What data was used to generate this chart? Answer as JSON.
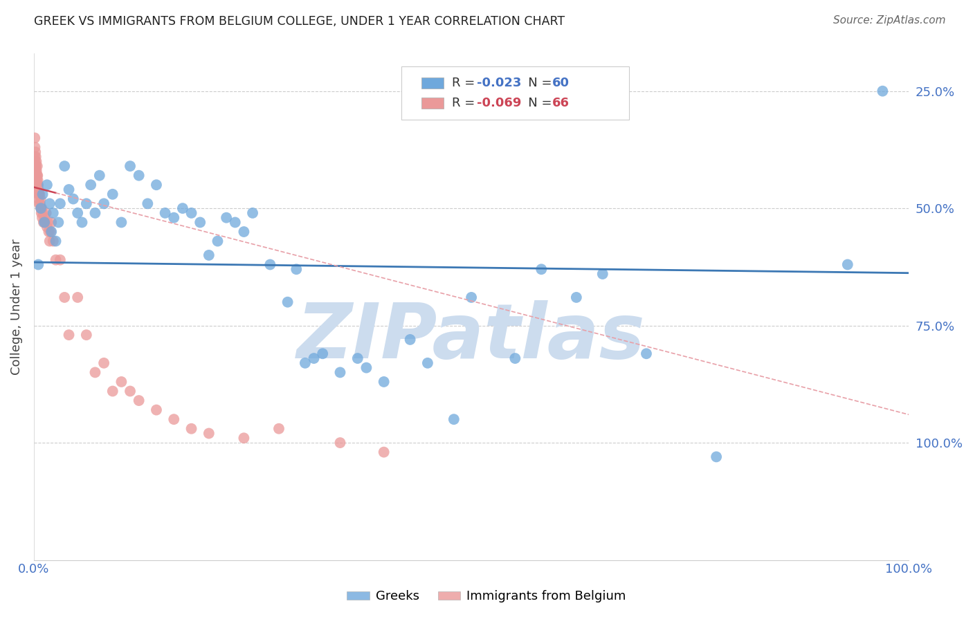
{
  "title": "GREEK VS IMMIGRANTS FROM BELGIUM COLLEGE, UNDER 1 YEAR CORRELATION CHART",
  "source": "Source: ZipAtlas.com",
  "ylabel": "College, Under 1 year",
  "ytick_labels": [
    "100.0%",
    "75.0%",
    "50.0%",
    "25.0%"
  ],
  "legend_blue_r": "-0.023",
  "legend_blue_n": "60",
  "legend_pink_r": "-0.069",
  "legend_pink_n": "66",
  "legend_label_blue": "Greeks",
  "legend_label_pink": "Immigrants from Belgium",
  "watermark": "ZIPatlas",
  "blue_scatter_x": [
    0.5,
    0.8,
    1.0,
    1.2,
    1.5,
    1.8,
    2.0,
    2.2,
    2.5,
    2.8,
    3.0,
    3.5,
    4.0,
    4.5,
    5.0,
    5.5,
    6.0,
    6.5,
    7.0,
    7.5,
    8.0,
    9.0,
    10.0,
    11.0,
    12.0,
    13.0,
    14.0,
    15.0,
    16.0,
    17.0,
    18.0,
    19.0,
    20.0,
    21.0,
    22.0,
    23.0,
    24.0,
    25.0,
    27.0,
    29.0,
    30.0,
    31.0,
    32.0,
    33.0,
    35.0,
    37.0,
    38.0,
    40.0,
    43.0,
    45.0,
    48.0,
    50.0,
    55.0,
    58.0,
    62.0,
    65.0,
    70.0,
    78.0,
    93.0,
    97.0
  ],
  "blue_scatter_y": [
    63.0,
    75.0,
    78.0,
    72.0,
    80.0,
    76.0,
    70.0,
    74.0,
    68.0,
    72.0,
    76.0,
    84.0,
    79.0,
    77.0,
    74.0,
    72.0,
    76.0,
    80.0,
    74.0,
    82.0,
    76.0,
    78.0,
    72.0,
    84.0,
    82.0,
    76.0,
    80.0,
    74.0,
    73.0,
    75.0,
    74.0,
    72.0,
    65.0,
    68.0,
    73.0,
    72.0,
    70.0,
    74.0,
    63.0,
    55.0,
    62.0,
    42.0,
    43.0,
    44.0,
    40.0,
    43.0,
    41.0,
    38.0,
    47.0,
    42.0,
    30.0,
    56.0,
    43.0,
    62.0,
    56.0,
    61.0,
    44.0,
    22.0,
    63.0,
    100.0
  ],
  "pink_scatter_x": [
    0.05,
    0.08,
    0.1,
    0.12,
    0.14,
    0.16,
    0.18,
    0.2,
    0.22,
    0.24,
    0.26,
    0.28,
    0.3,
    0.32,
    0.34,
    0.36,
    0.38,
    0.4,
    0.42,
    0.44,
    0.46,
    0.48,
    0.5,
    0.52,
    0.55,
    0.58,
    0.6,
    0.65,
    0.7,
    0.75,
    0.8,
    0.85,
    0.9,
    0.95,
    1.0,
    1.1,
    1.2,
    1.3,
    1.4,
    1.5,
    1.6,
    1.7,
    1.8,
    1.9,
    2.0,
    2.2,
    2.5,
    3.0,
    3.5,
    4.0,
    5.0,
    6.0,
    7.0,
    8.0,
    9.0,
    10.0,
    11.0,
    12.0,
    14.0,
    16.0,
    18.0,
    20.0,
    24.0,
    28.0,
    35.0,
    40.0
  ],
  "pink_scatter_y": [
    82.0,
    86.0,
    90.0,
    88.0,
    85.0,
    84.0,
    87.0,
    83.0,
    86.0,
    84.0,
    82.0,
    85.0,
    83.0,
    81.0,
    80.0,
    82.0,
    84.0,
    80.0,
    82.0,
    81.0,
    79.0,
    80.0,
    78.0,
    79.0,
    77.0,
    78.0,
    76.0,
    78.0,
    76.0,
    77.0,
    75.0,
    74.0,
    75.0,
    73.0,
    74.0,
    72.0,
    73.0,
    72.0,
    74.0,
    71.0,
    72.0,
    70.0,
    68.0,
    70.0,
    72.0,
    68.0,
    64.0,
    64.0,
    56.0,
    48.0,
    56.0,
    48.0,
    40.0,
    42.0,
    36.0,
    38.0,
    36.0,
    34.0,
    32.0,
    30.0,
    28.0,
    27.0,
    26.0,
    28.0,
    25.0,
    23.0
  ],
  "blue_line_y_start": 63.5,
  "blue_line_y_end": 61.2,
  "pink_line_y_start": 79.5,
  "pink_line_y_end": 31.0,
  "pink_solid_x_end": 2.5,
  "xlim": [
    0,
    100
  ],
  "ylim": [
    0,
    108
  ],
  "bg_color": "#ffffff",
  "blue_color": "#6fa8dc",
  "pink_color": "#ea9999",
  "blue_line_color": "#3c78b4",
  "pink_solid_color": "#cc4455",
  "pink_dash_color": "#e8a0a8",
  "grid_color": "#cccccc",
  "title_color": "#222222",
  "axis_label_color": "#4472c4",
  "right_tick_color": "#4472c4",
  "watermark_color": "#ccdcee"
}
